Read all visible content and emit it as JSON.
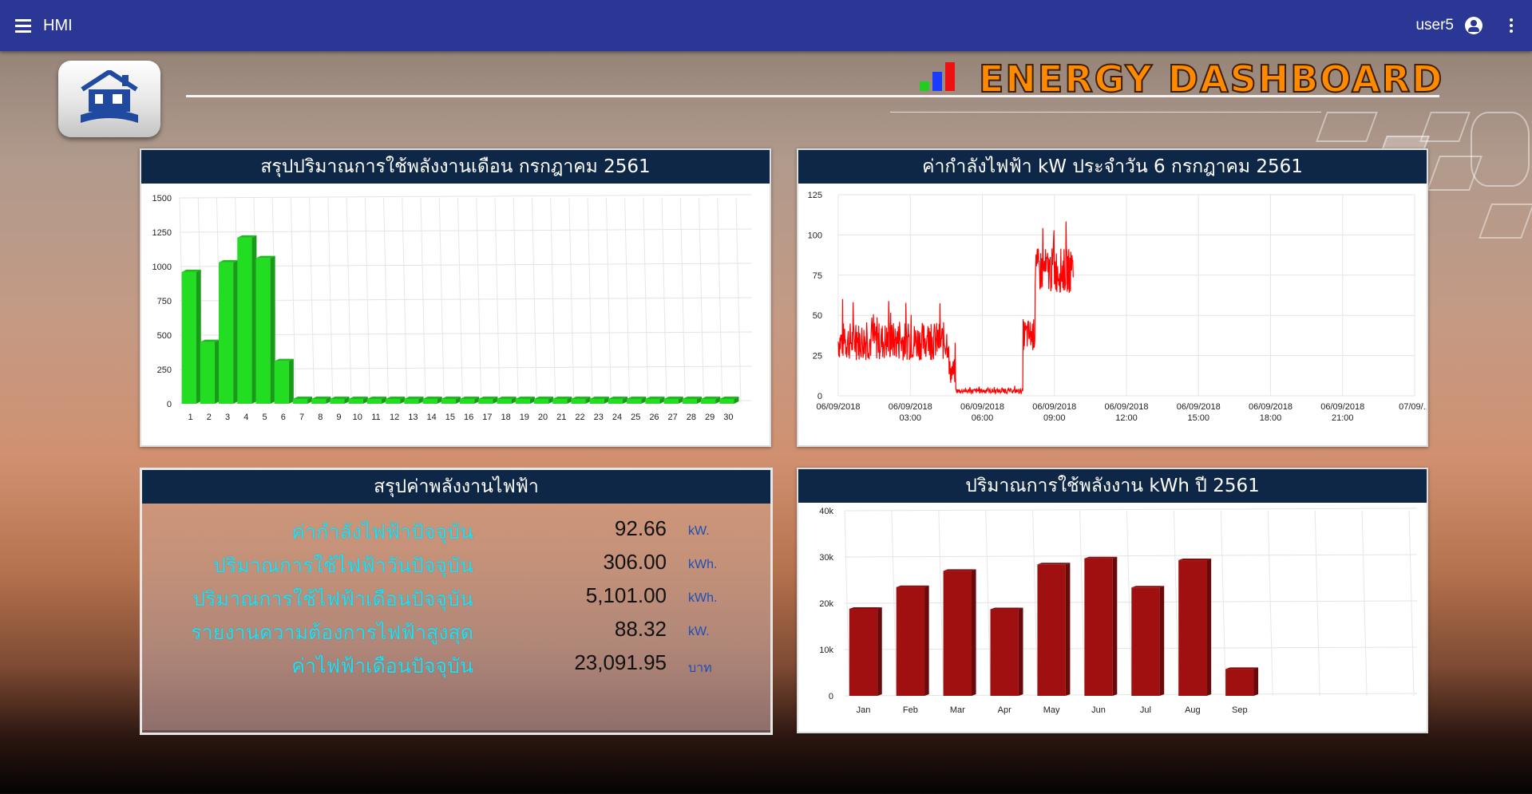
{
  "appbar": {
    "title": "HMI",
    "user": "user5",
    "menu_icon": "menu-icon",
    "user_icon": "account-circle-icon",
    "more_icon": "more-vert-icon"
  },
  "header": {
    "title": "ENERGY DASHBOARD",
    "bar_colors": [
      "#22cc22",
      "#1a3cff",
      "#ee1111"
    ]
  },
  "panels": {
    "monthly_title": "สรุปปริมาณการใช้พลังงานเดือน กรกฎาคม 2561",
    "power_title": "ค่ากำลังไฟฟ้า kW ประจำวัน 6 กรกฎาคม 2561",
    "summary_title": "สรุปค่าพลังงานไฟฟ้า",
    "yearly_title": "ปริมาณการใช้พลังงาน kWh ปี 2561"
  },
  "summary": {
    "rows": [
      {
        "label": "ค่ากำลังไฟฟ้าปัจจุบัน",
        "value": "92.66",
        "unit": "kW."
      },
      {
        "label": "ปริมาณการใช้ไฟฟ้าวันปัจจุบัน",
        "value": "306.00",
        "unit": "kWh."
      },
      {
        "label": "ปริมาณการใช้ไฟฟ้าเดือนปัจจุบัน",
        "value": "5,101.00",
        "unit": "kWh."
      },
      {
        "label": "รายงานความต้องการไฟฟ้าสูงสุด",
        "value": "88.32",
        "unit": "kW."
      },
      {
        "label": "ค่าไฟฟ้าเดือนปัจจุบัน",
        "value": "23,091.95",
        "unit": "บาท"
      }
    ]
  },
  "chart_data": [
    {
      "type": "bar",
      "categories": [
        "1",
        "2",
        "3",
        "4",
        "5",
        "6",
        "7",
        "8",
        "9",
        "10",
        "11",
        "12",
        "13",
        "14",
        "15",
        "16",
        "17",
        "18",
        "19",
        "20",
        "21",
        "22",
        "23",
        "24",
        "25",
        "26",
        "27",
        "28",
        "29",
        "30"
      ],
      "values": [
        960,
        450,
        1030,
        1210,
        1060,
        310,
        0,
        0,
        0,
        0,
        0,
        0,
        0,
        0,
        0,
        0,
        0,
        0,
        0,
        0,
        0,
        0,
        0,
        0,
        0,
        0,
        0,
        0,
        0,
        0
      ],
      "yticks": [
        "0",
        "250",
        "500",
        "750",
        "1000",
        "1250",
        "1500"
      ],
      "ylim": [
        0,
        1500
      ],
      "color": "#22dd22",
      "grid": true
    },
    {
      "type": "line",
      "x_labels": [
        "06/09/2018",
        "06/09/2018|03:00",
        "06/09/2018|06:00",
        "06/09/2018|09:00",
        "06/09/2018|12:00",
        "06/09/2018|15:00",
        "06/09/2018|18:00",
        "06/09/2018|21:00",
        "07/09/..."
      ],
      "x_hours": [
        0,
        3,
        6,
        9,
        12,
        15,
        18,
        21,
        24
      ],
      "yticks": [
        "0",
        "25",
        "50",
        "75",
        "100",
        "125"
      ],
      "ylim": [
        0,
        125
      ],
      "color": "#ff0000",
      "series": [
        {
          "segments": [
            {
              "from_h": 0.0,
              "to_h": 4.6,
              "base": 34,
              "noise": 12
            },
            {
              "from_h": 4.6,
              "to_h": 4.9,
              "base": 15,
              "noise": 8
            },
            {
              "from_h": 4.9,
              "to_h": 7.7,
              "base": 3,
              "noise": 1.5
            },
            {
              "from_h": 7.7,
              "to_h": 8.2,
              "base": 38,
              "noise": 10
            },
            {
              "from_h": 8.2,
              "to_h": 9.8,
              "base": 78,
              "noise": 14
            }
          ]
        }
      ],
      "grid": true
    },
    {
      "type": "bar",
      "categories": [
        "Jan",
        "Feb",
        "Mar",
        "Apr",
        "May",
        "Jun",
        "Jul",
        "Aug",
        "Sep"
      ],
      "values": [
        18800,
        23500,
        27000,
        18700,
        28400,
        29700,
        23400,
        29300,
        5800
      ],
      "yticks": [
        "0",
        "10k",
        "20k",
        "30k",
        "40k"
      ],
      "ylim": [
        0,
        40000
      ],
      "slots": 12,
      "color": "#a01010",
      "grid": true
    }
  ]
}
